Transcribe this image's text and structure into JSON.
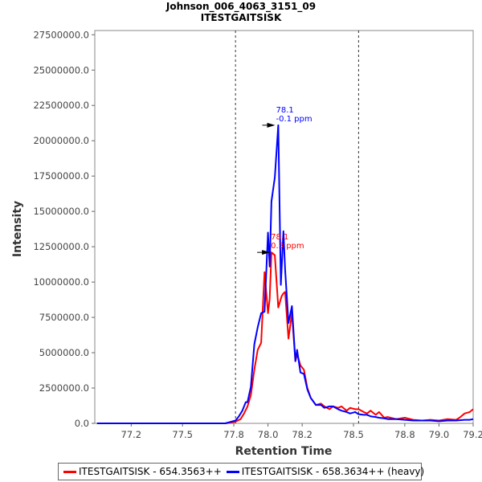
{
  "chart_data": {
    "type": "line",
    "title": "Johnson_006_4063_3151_09",
    "subtitle": "ITESTGAITSISK",
    "xlabel": "Retention Time",
    "ylabel": "Intensity",
    "xlim": [
      77.0,
      79.2
    ],
    "ylim": [
      0,
      27800000
    ],
    "x_ticks": [
      77.2,
      77.5,
      77.8,
      78.0,
      78.2,
      78.5,
      78.8,
      79.0,
      79.2
    ],
    "x_tick_labels": [
      "77.2",
      "77.5",
      "77.8",
      "78.0",
      "78.2",
      "78.5",
      "78.8",
      "79.0",
      "79.2"
    ],
    "y_ticks": [
      0,
      2500000,
      5000000,
      7500000,
      10000000,
      12500000,
      15000000,
      17500000,
      20000000,
      22500000,
      25000000,
      27500000
    ],
    "y_tick_labels": [
      "0.0",
      "2500000.0",
      "5000000.0",
      "7500000.0",
      "10000000.0",
      "12500000.0",
      "15000000.0",
      "17500000.0",
      "20000000.0",
      "22500000.0",
      "25000000.0",
      "27500000.0"
    ],
    "grid": false,
    "legend_position": "bottom",
    "boundaries": [
      77.81,
      78.53
    ],
    "series": [
      {
        "name": "ITESTGAITSISK - 654.3563++",
        "color": "#ff0000",
        "x": [
          77.0,
          77.5,
          77.75,
          77.78,
          77.81,
          77.84,
          77.86,
          77.88,
          77.9,
          77.92,
          77.94,
          77.96,
          77.98,
          78.0,
          78.01,
          78.02,
          78.04,
          78.06,
          78.08,
          78.09,
          78.1,
          78.12,
          78.14,
          78.16,
          78.17,
          78.19,
          78.21,
          78.23,
          78.25,
          78.28,
          78.31,
          78.33,
          78.36,
          78.38,
          78.41,
          78.43,
          78.46,
          78.48,
          78.51,
          78.53,
          78.56,
          78.58,
          78.6,
          78.63,
          78.65,
          78.68,
          78.7,
          78.75,
          78.8,
          78.85,
          78.9,
          78.95,
          79.0,
          79.05,
          79.1,
          79.12,
          79.15,
          79.18,
          79.2
        ],
        "values": [
          0,
          0,
          0,
          50000,
          120000,
          300000,
          700000,
          1200000,
          2000000,
          3800000,
          5200000,
          5700000,
          10700000,
          7800000,
          8800000,
          12100000,
          11900000,
          8200000,
          9000000,
          9200000,
          9300000,
          6000000,
          7800000,
          4400000,
          4900000,
          4100000,
          3800000,
          2500000,
          1800000,
          1300000,
          1400000,
          1200000,
          1000000,
          1200000,
          1100000,
          1200000,
          900000,
          1100000,
          1000000,
          1000000,
          800000,
          700000,
          900000,
          600000,
          800000,
          400000,
          450000,
          300000,
          400000,
          250000,
          200000,
          250000,
          200000,
          300000,
          250000,
          400000,
          700000,
          800000,
          1000000
        ]
      },
      {
        "name": "ITESTGAITSISK - 658.3634++ (heavy)",
        "color": "#0000ff",
        "x": [
          77.0,
          77.5,
          77.75,
          77.78,
          77.81,
          77.83,
          77.85,
          77.87,
          77.88,
          77.9,
          77.92,
          77.94,
          77.96,
          77.98,
          78.0,
          78.01,
          78.02,
          78.04,
          78.06,
          78.075,
          78.09,
          78.1,
          78.12,
          78.14,
          78.16,
          78.17,
          78.19,
          78.21,
          78.23,
          78.25,
          78.28,
          78.31,
          78.33,
          78.36,
          78.38,
          78.41,
          78.43,
          78.46,
          78.48,
          78.51,
          78.53,
          78.56,
          78.58,
          78.6,
          78.63,
          78.65,
          78.68,
          78.7,
          78.75,
          78.8,
          78.85,
          78.9,
          78.95,
          79.0,
          79.05,
          79.1,
          79.15,
          79.18,
          79.2
        ],
        "values": [
          0,
          0,
          0,
          100000,
          200000,
          500000,
          900000,
          1500000,
          1500000,
          2600000,
          5600000,
          6800000,
          7800000,
          7900000,
          13500000,
          11100000,
          15700000,
          17400000,
          21100000,
          9800000,
          13600000,
          10900000,
          7100000,
          8300000,
          4400000,
          5200000,
          3600000,
          3500000,
          2400000,
          1800000,
          1300000,
          1300000,
          1100000,
          1200000,
          1200000,
          1000000,
          900000,
          800000,
          700000,
          800000,
          650000,
          600000,
          600000,
          500000,
          450000,
          400000,
          350000,
          300000,
          300000,
          250000,
          200000,
          200000,
          200000,
          150000,
          200000,
          200000,
          250000,
          250000,
          300000
        ]
      }
    ],
    "annotations": [
      {
        "series": 1,
        "x": 78.07,
        "y": 21100000,
        "text1": "78.1",
        "text2": "-0.1 ppm",
        "color": "#0000ff"
      },
      {
        "series": 0,
        "x": 78.04,
        "y": 12100000,
        "text1": "78.1",
        "text2": "0.3 ppm",
        "color": "#ff0000"
      }
    ]
  },
  "legend": {
    "red_label": "ITESTGAITSISK - 654.3563++",
    "blue_label": "ITESTGAITSISK - 658.3634++ (heavy)",
    "red_color": "#ff0000",
    "blue_color": "#0000ff"
  }
}
